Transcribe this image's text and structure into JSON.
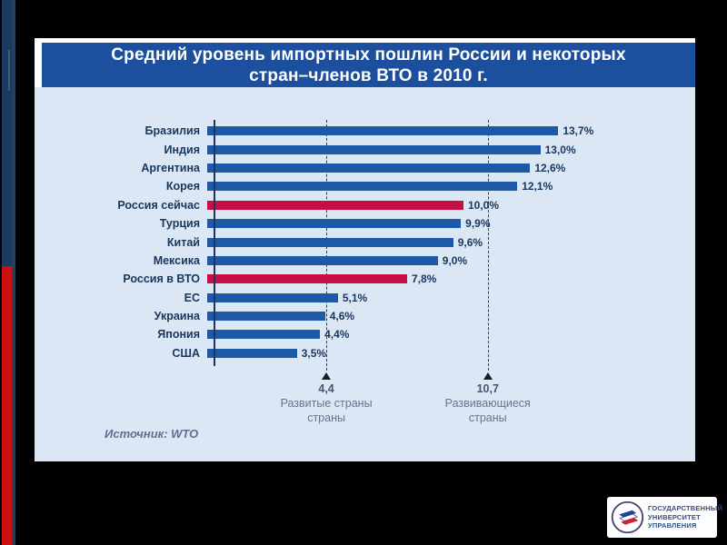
{
  "slide": {
    "title_line1": "Средний уровень импортных пошлин России и некоторых",
    "title_line2": "стран–членов ВТО в 2010 г.",
    "title_bg": "#1d4f9f",
    "panel_bg": "#dce7f6",
    "source_label": "Источник: WTO"
  },
  "decoration": {
    "page_background": "#000000",
    "left_strip_top_color": "#1b3a60",
    "left_strip_bottom_color": "#cc1010"
  },
  "chart_data": {
    "type": "bar",
    "orientation": "horizontal",
    "title": "Средний уровень импортных пошлин России и некоторых стран–членов ВТО в 2010 г.",
    "unit": "%",
    "categories": [
      "Бразилия",
      "Индия",
      "Аргентина",
      "Корея",
      "Россия сейчас",
      "Турция",
      "Китай",
      "Мексика",
      "Россия в ВТО",
      "ЕС",
      "Украина",
      "Япония",
      "США"
    ],
    "values": [
      13.7,
      13.0,
      12.6,
      12.1,
      10.0,
      9.9,
      9.6,
      9.0,
      7.8,
      5.1,
      4.6,
      4.4,
      3.5
    ],
    "value_labels": [
      "13,7%",
      "13,0%",
      "12,6%",
      "12,1%",
      "10,0%",
      "9,9%",
      "9,6%",
      "9,0%",
      "7,8%",
      "5,1%",
      "4,6%",
      "4,4%",
      "3,5%"
    ],
    "highlighted_categories": [
      "Россия сейчас",
      "Россия в ВТО"
    ],
    "bar_color": "#1d59a6",
    "highlight_color": "#c50f45",
    "xlim": [
      0,
      14.5
    ],
    "grid": false,
    "legend": false,
    "reference_lines": [
      {
        "value": 4.4,
        "value_label": "4,4",
        "label_lines": [
          "Развитые страны",
          "страны"
        ]
      },
      {
        "value": 10.7,
        "value_label": "10,7",
        "label_lines": [
          "Развивающиеся",
          "страны"
        ]
      }
    ],
    "source": "Источник: WTO"
  },
  "logo": {
    "line1": "ГОСУДАРСТВЕННЫЙ",
    "line2": "УНИВЕРСИТЕТ",
    "line3": "УПРАВЛЕНИЯ"
  }
}
